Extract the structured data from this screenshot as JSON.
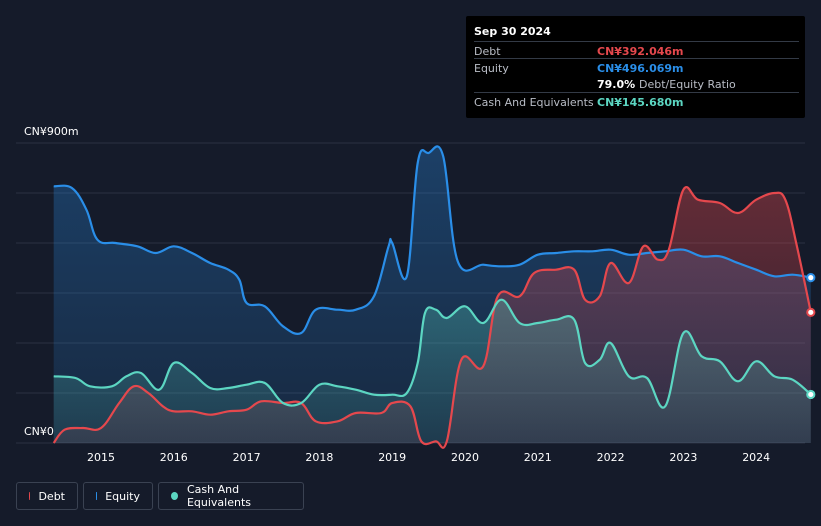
{
  "chart_data": {
    "type": "area",
    "title": "",
    "ylabel": "",
    "y_unit": "CN¥m",
    "ylim": [
      0,
      900
    ],
    "y_tick_labels": {
      "top": "CN¥900m",
      "bottom": "CN¥0"
    },
    "x_tick_labels": [
      "2015",
      "2016",
      "2017",
      "2018",
      "2019",
      "2020",
      "2021",
      "2022",
      "2023",
      "2024"
    ],
    "xlim": [
      2014.35,
      2024.75
    ],
    "grid": true,
    "legend_position": "bottom-left",
    "series": [
      {
        "name": "Debt",
        "color": "#e5484d",
        "points": [
          [
            2014.35,
            0
          ],
          [
            2014.5,
            40
          ],
          [
            2014.75,
            45
          ],
          [
            2015.0,
            45
          ],
          [
            2015.25,
            120
          ],
          [
            2015.45,
            170
          ],
          [
            2015.65,
            150
          ],
          [
            2015.85,
            110
          ],
          [
            2016.0,
            95
          ],
          [
            2016.25,
            95
          ],
          [
            2016.5,
            85
          ],
          [
            2016.75,
            95
          ],
          [
            2017.0,
            100
          ],
          [
            2017.2,
            125
          ],
          [
            2017.5,
            120
          ],
          [
            2017.75,
            120
          ],
          [
            2017.95,
            65
          ],
          [
            2018.25,
            65
          ],
          [
            2018.5,
            90
          ],
          [
            2018.85,
            90
          ],
          [
            2019.0,
            120
          ],
          [
            2019.25,
            110
          ],
          [
            2019.4,
            5
          ],
          [
            2019.6,
            5
          ],
          [
            2019.75,
            5
          ],
          [
            2019.95,
            250
          ],
          [
            2020.25,
            230
          ],
          [
            2020.45,
            440
          ],
          [
            2020.75,
            440
          ],
          [
            2020.95,
            510
          ],
          [
            2021.25,
            520
          ],
          [
            2021.5,
            520
          ],
          [
            2021.65,
            430
          ],
          [
            2021.85,
            440
          ],
          [
            2022.0,
            540
          ],
          [
            2022.25,
            480
          ],
          [
            2022.45,
            590
          ],
          [
            2022.65,
            550
          ],
          [
            2022.8,
            580
          ],
          [
            2023.0,
            760
          ],
          [
            2023.2,
            730
          ],
          [
            2023.5,
            720
          ],
          [
            2023.75,
            690
          ],
          [
            2024.0,
            730
          ],
          [
            2024.25,
            750
          ],
          [
            2024.4,
            730
          ],
          [
            2024.55,
            600
          ],
          [
            2024.75,
            392.046
          ]
        ]
      },
      {
        "name": "Equity",
        "color": "#2a8ee8",
        "points": [
          [
            2014.35,
            770
          ],
          [
            2014.6,
            765
          ],
          [
            2014.8,
            700
          ],
          [
            2014.95,
            610
          ],
          [
            2015.2,
            600
          ],
          [
            2015.5,
            590
          ],
          [
            2015.75,
            570
          ],
          [
            2016.0,
            590
          ],
          [
            2016.25,
            570
          ],
          [
            2016.5,
            540
          ],
          [
            2016.75,
            520
          ],
          [
            2016.9,
            490
          ],
          [
            2017.0,
            420
          ],
          [
            2017.25,
            410
          ],
          [
            2017.5,
            350
          ],
          [
            2017.75,
            330
          ],
          [
            2017.95,
            400
          ],
          [
            2018.25,
            400
          ],
          [
            2018.5,
            400
          ],
          [
            2018.75,
            440
          ],
          [
            2018.95,
            590
          ],
          [
            2019.0,
            600
          ],
          [
            2019.2,
            500
          ],
          [
            2019.35,
            840
          ],
          [
            2019.5,
            870
          ],
          [
            2019.7,
            860
          ],
          [
            2019.9,
            545
          ],
          [
            2020.25,
            535
          ],
          [
            2020.5,
            530
          ],
          [
            2020.75,
            535
          ],
          [
            2021.0,
            565
          ],
          [
            2021.25,
            570
          ],
          [
            2021.5,
            575
          ],
          [
            2021.75,
            575
          ],
          [
            2022.0,
            580
          ],
          [
            2022.25,
            565
          ],
          [
            2022.5,
            570
          ],
          [
            2022.75,
            575
          ],
          [
            2023.0,
            580
          ],
          [
            2023.25,
            560
          ],
          [
            2023.5,
            560
          ],
          [
            2023.75,
            540
          ],
          [
            2024.0,
            520
          ],
          [
            2024.25,
            500
          ],
          [
            2024.5,
            505
          ],
          [
            2024.75,
            496.069
          ]
        ]
      },
      {
        "name": "Cash And Equivalents",
        "color": "#5cd6c2",
        "points": [
          [
            2014.35,
            200
          ],
          [
            2014.65,
            195
          ],
          [
            2014.85,
            170
          ],
          [
            2015.15,
            170
          ],
          [
            2015.35,
            200
          ],
          [
            2015.55,
            210
          ],
          [
            2015.8,
            160
          ],
          [
            2016.0,
            240
          ],
          [
            2016.25,
            210
          ],
          [
            2016.5,
            165
          ],
          [
            2016.75,
            165
          ],
          [
            2017.0,
            175
          ],
          [
            2017.25,
            180
          ],
          [
            2017.5,
            120
          ],
          [
            2017.75,
            120
          ],
          [
            2018.0,
            175
          ],
          [
            2018.25,
            170
          ],
          [
            2018.5,
            160
          ],
          [
            2018.75,
            145
          ],
          [
            2019.0,
            145
          ],
          [
            2019.2,
            150
          ],
          [
            2019.35,
            240
          ],
          [
            2019.45,
            390
          ],
          [
            2019.6,
            400
          ],
          [
            2019.75,
            375
          ],
          [
            2020.0,
            410
          ],
          [
            2020.25,
            360
          ],
          [
            2020.5,
            430
          ],
          [
            2020.75,
            360
          ],
          [
            2021.0,
            360
          ],
          [
            2021.25,
            370
          ],
          [
            2021.5,
            370
          ],
          [
            2021.65,
            240
          ],
          [
            2021.85,
            250
          ],
          [
            2022.0,
            300
          ],
          [
            2022.25,
            200
          ],
          [
            2022.5,
            195
          ],
          [
            2022.75,
            110
          ],
          [
            2023.0,
            330
          ],
          [
            2023.25,
            260
          ],
          [
            2023.5,
            245
          ],
          [
            2023.75,
            185
          ],
          [
            2024.0,
            245
          ],
          [
            2024.25,
            200
          ],
          [
            2024.5,
            190
          ],
          [
            2024.75,
            145.68
          ]
        ]
      }
    ]
  },
  "tooltip": {
    "date": "Sep 30 2024",
    "rows": [
      {
        "label": "Debt",
        "value": "CN¥392.046m",
        "color": "#e5484d"
      },
      {
        "label": "Equity",
        "value": "CN¥496.069m",
        "color": "#2a8ee8"
      },
      {
        "label": "",
        "value": "79.0%",
        "suffix": "Debt/Equity Ratio",
        "color": "#ffffff"
      },
      {
        "label": "Cash And Equivalents",
        "value": "CN¥145.680m",
        "color": "#5cd6c2"
      }
    ]
  },
  "legend": [
    {
      "label": "Debt",
      "color": "#e5484d"
    },
    {
      "label": "Equity",
      "color": "#2a8ee8"
    },
    {
      "label": "Cash And Equivalents",
      "color": "#5cd6c2"
    }
  ]
}
